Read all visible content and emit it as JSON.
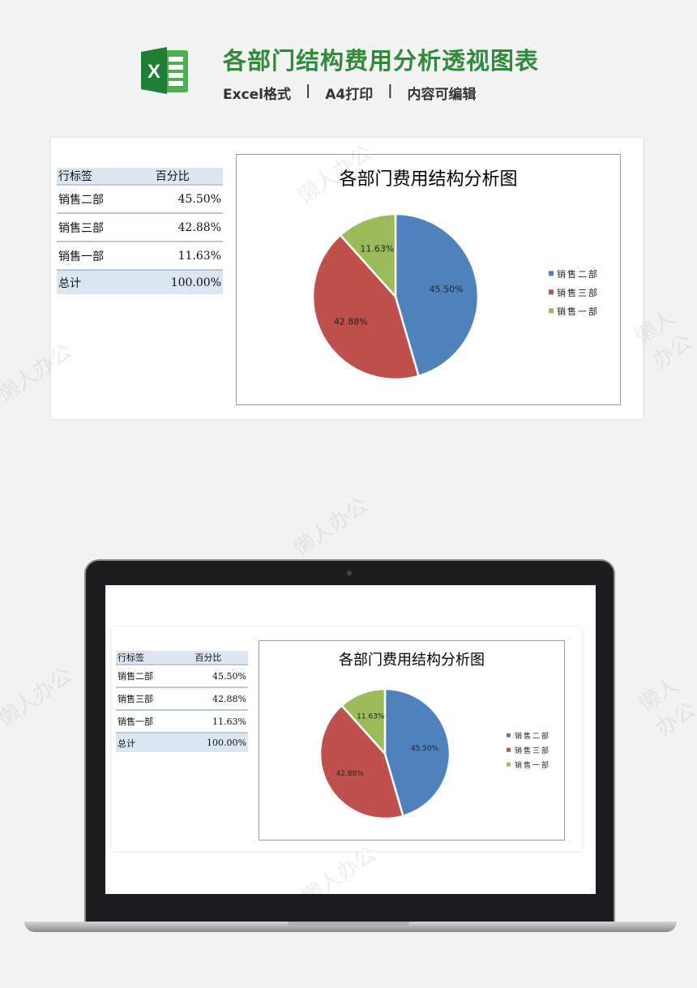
{
  "header": {
    "title": "各部门结构费用分析透视图表",
    "features": [
      "Excel格式",
      "|",
      "A4打印",
      "|",
      "内容可编辑"
    ],
    "logo": "excel-logo",
    "brand_color": "#2e8b3a"
  },
  "watermark": "懒人办公",
  "table": {
    "headers": [
      "行标签",
      "百分比"
    ],
    "rows": [
      [
        "销售二部",
        "45.50%"
      ],
      [
        "销售三部",
        "42.88%"
      ],
      [
        "销售一部",
        "11.63%"
      ]
    ],
    "total": [
      "总计",
      "100.00%"
    ]
  },
  "chart_data": {
    "type": "pie",
    "title": "各部门费用结构分析图",
    "categories": [
      "销售二部",
      "销售三部",
      "销售一部"
    ],
    "values": [
      45.5,
      42.88,
      11.63
    ],
    "labels": [
      "45.50%",
      "42.88%",
      "11.63%"
    ],
    "colors": [
      "#4f81bd",
      "#c0504d",
      "#9bbb59"
    ],
    "legend": "right",
    "start": "top",
    "direction": "clockwise"
  }
}
